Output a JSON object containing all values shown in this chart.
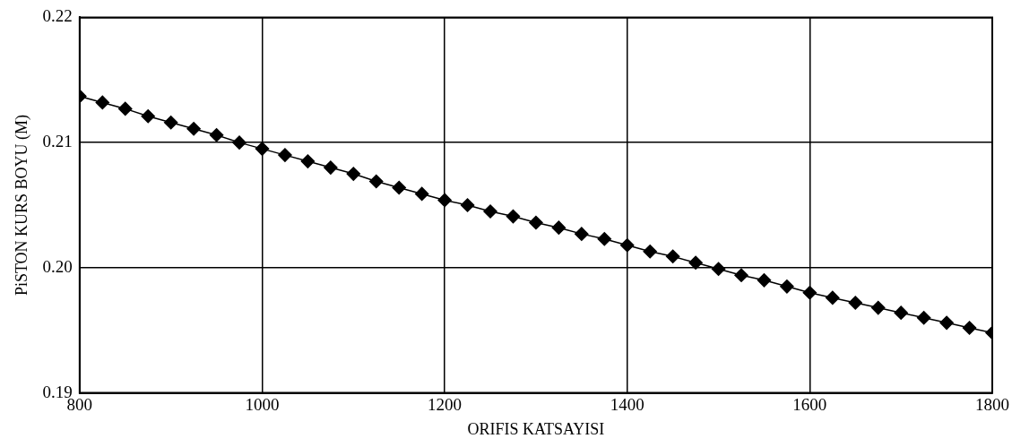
{
  "chart_data": {
    "type": "line",
    "xlabel": "ORIFIS KATSAYISI",
    "ylabel": "PiSTON KURS BOYU (M)",
    "x": [
      800,
      825,
      850,
      875,
      900,
      925,
      950,
      975,
      1000,
      1025,
      1050,
      1075,
      1100,
      1125,
      1150,
      1175,
      1200,
      1225,
      1250,
      1275,
      1300,
      1325,
      1350,
      1375,
      1400,
      1425,
      1450,
      1475,
      1500,
      1525,
      1550,
      1575,
      1600,
      1625,
      1650,
      1675,
      1700,
      1725,
      1750,
      1775,
      1800
    ],
    "series": [
      {
        "color": "#000000",
        "values": [
          0.2137,
          0.2132,
          0.2127,
          0.2121,
          0.2116,
          0.2111,
          0.2106,
          0.21,
          0.2095,
          0.209,
          0.2085,
          0.208,
          0.2075,
          0.2069,
          0.2064,
          0.2059,
          0.2054,
          0.205,
          0.2045,
          0.2041,
          0.2036,
          0.2032,
          0.2027,
          0.2023,
          0.2018,
          0.2013,
          0.2009,
          0.2004,
          0.1999,
          0.1994,
          0.199,
          0.1985,
          0.198,
          0.1976,
          0.1972,
          0.1968,
          0.1964,
          0.196,
          0.1956,
          0.1952,
          0.1948
        ]
      }
    ],
    "xlim": [
      800,
      1800
    ],
    "xticks": [
      800,
      1000,
      1200,
      1400,
      1600,
      1800
    ],
    "ylim": [
      0.19,
      0.22
    ],
    "yticks": [
      {
        "value": 0.19,
        "label": "0.19"
      },
      {
        "value": 0.2,
        "label": "0.20"
      },
      {
        "value": 0.21,
        "label": "0.21"
      },
      {
        "value": 0.22,
        "label": "0.22"
      }
    ],
    "grid": true,
    "marker": "diamond",
    "line_style": "solid"
  }
}
